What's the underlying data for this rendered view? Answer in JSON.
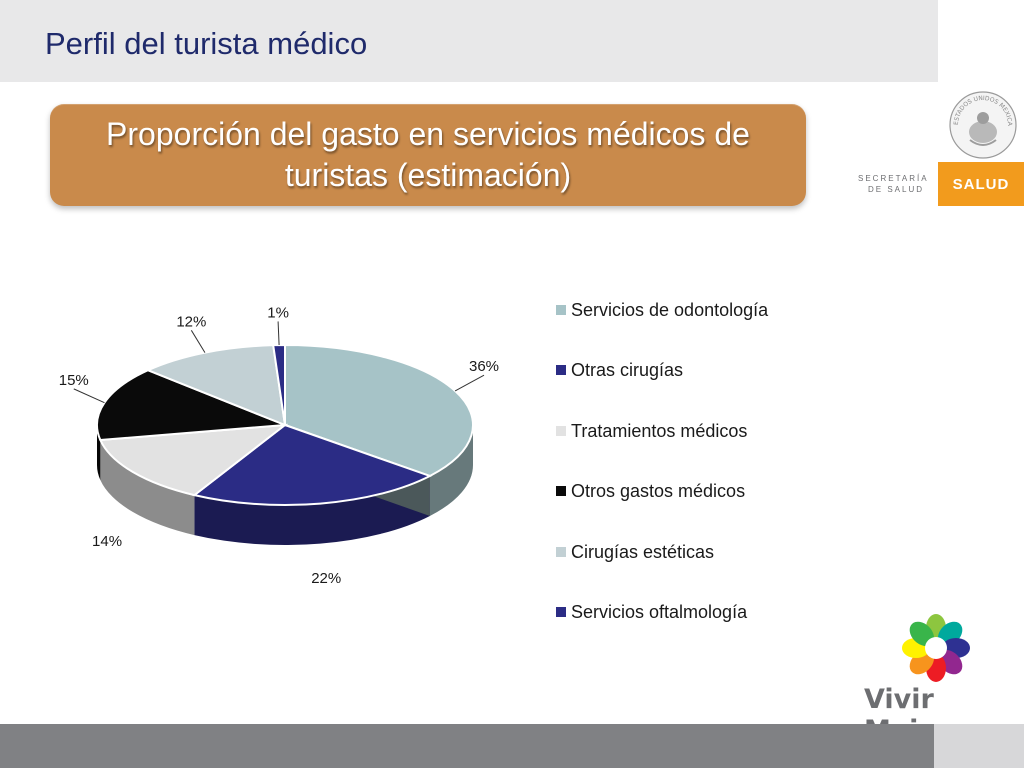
{
  "header": {
    "title": "Perfil del turista médico"
  },
  "banner": {
    "text": "Proporción del gasto en servicios médicos de turistas (estimación)"
  },
  "logos": {
    "secretaria_line1": "SECRETARÍA",
    "secretaria_line2": "DE SALUD",
    "salud": "SALUD",
    "seal_text": "ESTADOS UNIDOS MEXICANOS",
    "vivir_mejor": "Vivir Mejor"
  },
  "colors": {
    "title": "#1f2a6b",
    "banner": "#c98a4b",
    "salud_orange": "#f29b1d",
    "footer": "#808184"
  },
  "chart_data": {
    "type": "pie",
    "style": "3d",
    "title": "",
    "legend_position": "right",
    "categories": [
      "Servicios de odontología",
      "Otras cirugías",
      "Tratamientos médicos",
      "Otros gastos médicos",
      "Cirugías estéticas",
      "Servicios oftalmología"
    ],
    "values": [
      36,
      22,
      14,
      15,
      12,
      1
    ],
    "labels": [
      "36%",
      "22%",
      "14%",
      "15%",
      "12%",
      "1%"
    ],
    "colors": [
      "#a6c3c7",
      "#2b2c85",
      "#e2e2e2",
      "#0a0a0a",
      "#c2d0d4",
      "#2b2c85"
    ]
  }
}
